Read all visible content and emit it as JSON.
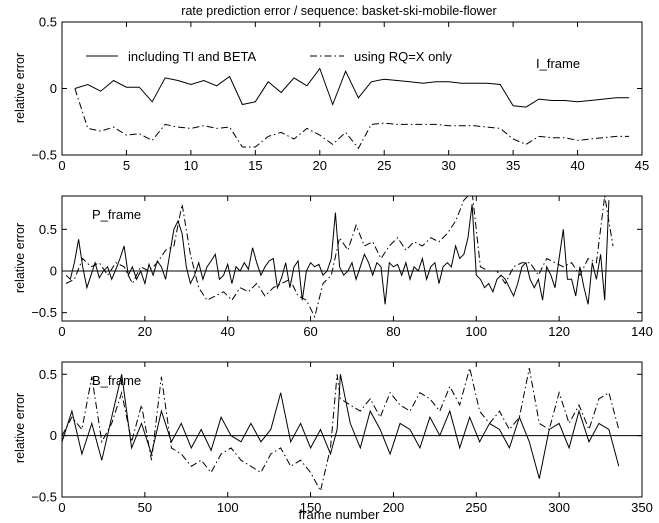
{
  "figure_title": "rate prediction error / sequence: basket-ski-mobile-flower",
  "colors": {
    "background": "#ffffff",
    "ink": "#000000"
  },
  "line_styles": {
    "including TI and BETA": "solid",
    "using RQ=X only": "dash-dot"
  },
  "chart_data": [
    {
      "type": "line",
      "title": "rate prediction error / sequence: basket-ski-mobile-flower",
      "xlabel": "",
      "ylabel": "relative error",
      "xlim": [
        0,
        45
      ],
      "ylim": [
        -0.5,
        0.5
      ],
      "xticks": [
        0,
        5,
        10,
        15,
        20,
        25,
        30,
        35,
        40,
        45
      ],
      "yticks": [
        -0.5,
        0,
        0.5
      ],
      "ytick_labels": [
        "-0.5",
        "0",
        "0.5"
      ],
      "grid": false,
      "zero_line": false,
      "annotation": "I_frame",
      "legend": {
        "placement": "top",
        "entries": [
          "including TI and BETA",
          "using RQ=X only"
        ]
      },
      "series": [
        {
          "name": "including TI and BETA",
          "style": "solid",
          "x": [
            1,
            2,
            3,
            4,
            5,
            6,
            7,
            8,
            9,
            10,
            11,
            12,
            13,
            14,
            15,
            16,
            17,
            18,
            19,
            20,
            21,
            22,
            23,
            24,
            25,
            26,
            27,
            28,
            29,
            30,
            31,
            32,
            33,
            34,
            35,
            36,
            37,
            38,
            39,
            40,
            41,
            42,
            43,
            44
          ],
          "y": [
            0,
            0.03,
            -0.02,
            0.06,
            0.01,
            0.01,
            -0.1,
            0.08,
            0.06,
            0.03,
            0.06,
            0.02,
            0.09,
            -0.12,
            -0.1,
            0.05,
            -0.03,
            0.08,
            0.02,
            0.15,
            -0.12,
            0.13,
            -0.07,
            0.05,
            0.07,
            0.06,
            0.05,
            0.04,
            0.05,
            0.05,
            0.04,
            0.04,
            0.04,
            0.03,
            -0.13,
            -0.14,
            -0.08,
            -0.09,
            -0.09,
            -0.1,
            -0.09,
            -0.08,
            -0.07,
            -0.07
          ]
        },
        {
          "name": "using RQ=X only",
          "style": "dash-dot",
          "x": [
            1,
            2,
            3,
            4,
            5,
            6,
            7,
            8,
            9,
            10,
            11,
            12,
            13,
            14,
            15,
            16,
            17,
            18,
            19,
            20,
            21,
            22,
            23,
            24,
            25,
            26,
            27,
            28,
            29,
            30,
            31,
            32,
            33,
            34,
            35,
            36,
            37,
            38,
            39,
            40,
            41,
            42,
            43,
            44
          ],
          "y": [
            0,
            -0.3,
            -0.32,
            -0.29,
            -0.35,
            -0.34,
            -0.39,
            -0.27,
            -0.29,
            -0.3,
            -0.28,
            -0.3,
            -0.29,
            -0.44,
            -0.44,
            -0.36,
            -0.33,
            -0.38,
            -0.3,
            -0.35,
            -0.42,
            -0.33,
            -0.45,
            -0.27,
            -0.26,
            -0.27,
            -0.27,
            -0.27,
            -0.27,
            -0.28,
            -0.28,
            -0.28,
            -0.29,
            -0.3,
            -0.38,
            -0.42,
            -0.36,
            -0.37,
            -0.37,
            -0.39,
            -0.38,
            -0.37,
            -0.36,
            -0.36
          ]
        }
      ]
    },
    {
      "type": "line",
      "title": "",
      "xlabel": "",
      "ylabel": "relative error",
      "xlim": [
        0,
        140
      ],
      "ylim": [
        -0.6,
        0.9
      ],
      "xticks": [
        0,
        20,
        40,
        60,
        80,
        100,
        120,
        140
      ],
      "yticks": [
        -0.5,
        0,
        0.5
      ],
      "ytick_labels": [
        "-0.5",
        "0",
        "0.5"
      ],
      "grid": false,
      "zero_line": true,
      "annotation": "P_frame",
      "series": [
        {
          "style": "solid",
          "x": [
            1,
            2,
            3,
            4,
            5,
            6,
            7,
            8,
            9,
            10,
            11,
            12,
            13,
            14,
            15,
            16,
            17,
            18,
            19,
            20,
            21,
            22,
            23,
            24,
            25,
            26,
            27,
            28,
            29,
            30,
            31,
            32,
            33,
            34,
            35,
            36,
            37,
            38,
            39,
            40,
            41,
            42,
            43,
            44,
            45,
            46,
            47,
            48,
            49,
            50,
            51,
            52,
            53,
            54,
            55,
            56,
            57,
            58,
            59,
            60,
            61,
            62,
            63,
            64,
            65,
            66,
            67,
            68,
            69,
            70,
            71,
            72,
            73,
            74,
            75,
            76,
            77,
            78,
            79,
            80,
            81,
            82,
            83,
            84,
            85,
            86,
            87,
            88,
            89,
            90,
            91,
            92,
            93,
            94,
            95,
            96,
            97,
            98,
            99,
            100,
            101,
            102,
            103,
            104,
            105,
            106,
            107,
            108,
            109,
            110,
            111,
            112,
            113,
            114,
            115,
            116,
            117,
            118,
            119,
            120,
            121,
            122,
            123,
            124,
            125,
            126,
            127,
            128,
            129,
            130,
            131,
            132
          ],
          "y": [
            -0.05,
            -0.1,
            0.1,
            0.38,
            0.05,
            -0.2,
            -0.05,
            0.1,
            -0.08,
            0,
            0.05,
            -0.1,
            0.02,
            0.15,
            0.3,
            -0.05,
            0.05,
            -0.1,
            0,
            -0.15,
            0.08,
            -0.05,
            0.12,
            0.05,
            -0.1,
            0.2,
            0.5,
            0.6,
            0.45,
            0.05,
            -0.15,
            -0.05,
            0.1,
            -0.1,
            0.05,
            0.12,
            0.2,
            -0.1,
            -0.05,
            0.08,
            -0.15,
            0.05,
            0,
            0.1,
            0.02,
            0.28,
            0.1,
            -0.05,
            0.05,
            0.12,
            0.15,
            -0.2,
            -0.08,
            0.1,
            -0.2,
            0.05,
            0.12,
            -0.35,
            0,
            0.1,
            0.05,
            0.08,
            -0.05,
            0,
            0.15,
            0.7,
            0.05,
            -0.05,
            0,
            0.1,
            -0.1,
            0.05,
            0.2,
            0.1,
            -0.05,
            0.1,
            0.05,
            -0.4,
            0.1,
            0.05,
            0.08,
            -0.05,
            0.1,
            -0.1,
            0.05,
            0,
            0.15,
            -0.1,
            0.05,
            0.1,
            -0.15,
            0.05,
            0.1,
            0.05,
            0.3,
            0.15,
            0.2,
            0.4,
            0.8,
            -0.05,
            -0.1,
            -0.2,
            -0.15,
            -0.25,
            -0.1,
            -0.05,
            -0.1,
            -0.2,
            -0.3,
            -0.15,
            0.05,
            0.1,
            -0.1,
            -0.2,
            -0.1,
            -0.35,
            0.05,
            -0.05,
            -0.2,
            0.15,
            0.5,
            -0.1,
            -0.1,
            -0.3,
            0.05,
            -0.2,
            -0.4,
            0.1,
            -0.1,
            0.2,
            -0.35,
            0.85
          ]
        },
        {
          "style": "dash-dot",
          "x": [
            1,
            3,
            5,
            7,
            9,
            11,
            13,
            15,
            17,
            19,
            21,
            23,
            25,
            27,
            29,
            31,
            33,
            35,
            37,
            39,
            41,
            43,
            45,
            47,
            49,
            51,
            53,
            55,
            57,
            59,
            61,
            63,
            65,
            67,
            69,
            71,
            73,
            75,
            77,
            79,
            81,
            83,
            85,
            87,
            89,
            91,
            93,
            95,
            97,
            99,
            101,
            103,
            105,
            107,
            109,
            111,
            113,
            115,
            117,
            119,
            121,
            123,
            125,
            127,
            129,
            131,
            133
          ],
          "y": [
            -0.15,
            -0.1,
            0.15,
            0.05,
            0.1,
            -0.05,
            0.1,
            0.05,
            -0.15,
            0.05,
            0,
            0.1,
            0.25,
            0.3,
            0.8,
            0.2,
            -0.2,
            -0.35,
            -0.3,
            -0.25,
            -0.35,
            -0.2,
            -0.25,
            -0.15,
            -0.3,
            -0.2,
            -0.15,
            -0.1,
            -0.3,
            -0.35,
            -0.55,
            -0.15,
            -0.05,
            0.4,
            0.25,
            0.55,
            0.3,
            0.35,
            0.15,
            0.3,
            0.4,
            0.25,
            0.35,
            0.3,
            0.4,
            0.35,
            0.45,
            0.6,
            0.85,
            0.95,
            0.05,
            0,
            0,
            -0.15,
            0.05,
            0.1,
            0.1,
            -0.05,
            0.15,
            0.1,
            0.05,
            0.1,
            -0.05,
            0.15,
            0.1,
            0.9,
            0.3
          ]
        }
      ]
    },
    {
      "type": "line",
      "title": "",
      "xlabel": "frame number",
      "ylabel": "relative error",
      "xlim": [
        0,
        350
      ],
      "ylim": [
        -0.5,
        0.6
      ],
      "xticks": [
        0,
        50,
        100,
        150,
        200,
        250,
        300,
        350
      ],
      "yticks": [
        -0.5,
        0,
        0.5
      ],
      "ytick_labels": [
        "-0.5",
        "0",
        "0.5"
      ],
      "grid": false,
      "zero_line": true,
      "annotation": "B_frame",
      "series": [
        {
          "style": "solid",
          "x": [
            0,
            6,
            12,
            18,
            24,
            30,
            36,
            42,
            48,
            54,
            60,
            66,
            72,
            78,
            84,
            90,
            96,
            102,
            108,
            114,
            120,
            126,
            132,
            138,
            144,
            150,
            156,
            162,
            166,
            168,
            174,
            180,
            186,
            192,
            198,
            204,
            210,
            216,
            222,
            228,
            234,
            240,
            246,
            252,
            258,
            264,
            270,
            276,
            282,
            288,
            294,
            300,
            306,
            312,
            318,
            324,
            330,
            336
          ],
          "y": [
            -0.05,
            0.2,
            -0.15,
            0.1,
            -0.2,
            0.15,
            0.5,
            -0.1,
            0.1,
            -0.15,
            0.2,
            -0.05,
            0.1,
            -0.1,
            0.05,
            -0.12,
            0.15,
            0,
            -0.05,
            0.1,
            -0.05,
            0.05,
            0.35,
            -0.05,
            0.1,
            -0.1,
            0.05,
            -0.15,
            0.05,
            0.5,
            0.1,
            -0.1,
            0.2,
            0.05,
            -0.15,
            0.1,
            0.05,
            -0.1,
            0.15,
            0,
            0.2,
            -0.1,
            0.15,
            -0.05,
            0.1,
            0.05,
            -0.1,
            0.15,
            -0.05,
            -0.35,
            0.05,
            0.1,
            -0.1,
            0.2,
            -0.05,
            0.1,
            0.05,
            -0.25
          ]
        },
        {
          "style": "dash-dot",
          "x": [
            0,
            6,
            12,
            18,
            24,
            30,
            36,
            42,
            48,
            54,
            60,
            66,
            72,
            78,
            84,
            90,
            96,
            102,
            108,
            114,
            120,
            126,
            132,
            138,
            144,
            150,
            156,
            162,
            166,
            168,
            174,
            180,
            186,
            192,
            198,
            204,
            210,
            216,
            222,
            228,
            234,
            240,
            246,
            252,
            258,
            264,
            270,
            276,
            282,
            288,
            294,
            300,
            306,
            312,
            318,
            324,
            330,
            336
          ],
          "y": [
            0,
            0.15,
            0.05,
            0.48,
            -0.05,
            0.1,
            0.35,
            -0.05,
            0.25,
            -0.2,
            0.48,
            -0.1,
            -0.15,
            -0.25,
            -0.2,
            -0.3,
            -0.15,
            -0.1,
            -0.2,
            -0.25,
            -0.3,
            -0.15,
            -0.1,
            -0.25,
            -0.2,
            -0.3,
            -0.45,
            -0.1,
            0.5,
            0.3,
            0.25,
            0.2,
            0.3,
            0.15,
            0.35,
            0.25,
            0.2,
            0.35,
            0.3,
            0.2,
            0.4,
            0.25,
            0.55,
            0.2,
            0.1,
            0.2,
            0.05,
            0.15,
            0.55,
            0.1,
            0.05,
            0.35,
            0.1,
            0.25,
            0.05,
            0.3,
            0.35,
            0.05
          ]
        }
      ]
    }
  ]
}
